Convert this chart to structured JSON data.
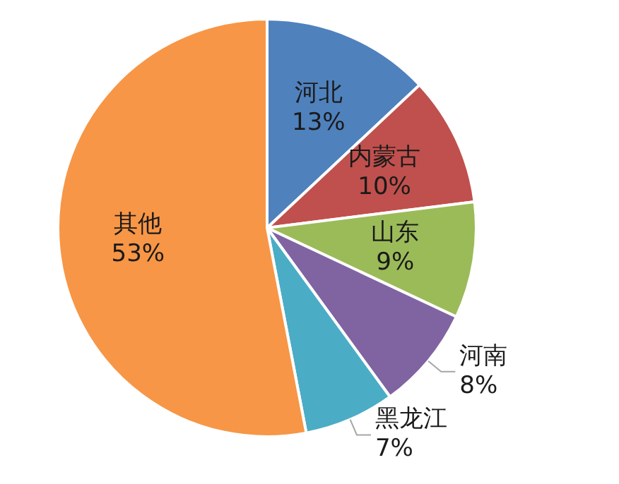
{
  "chart_data": {
    "type": "pie",
    "categories": [
      "河北",
      "内蒙古",
      "山东",
      "河南",
      "黑龙江",
      "其他"
    ],
    "values": [
      13,
      10,
      9,
      8,
      7,
      53
    ],
    "value_labels": [
      "13%",
      "10%",
      "9%",
      "8%",
      "7%",
      "53%"
    ],
    "colors": [
      "#4f81bd",
      "#c0504d",
      "#9bbb59",
      "#8064a2",
      "#4bacc6",
      "#f79646"
    ],
    "legend": false
  }
}
